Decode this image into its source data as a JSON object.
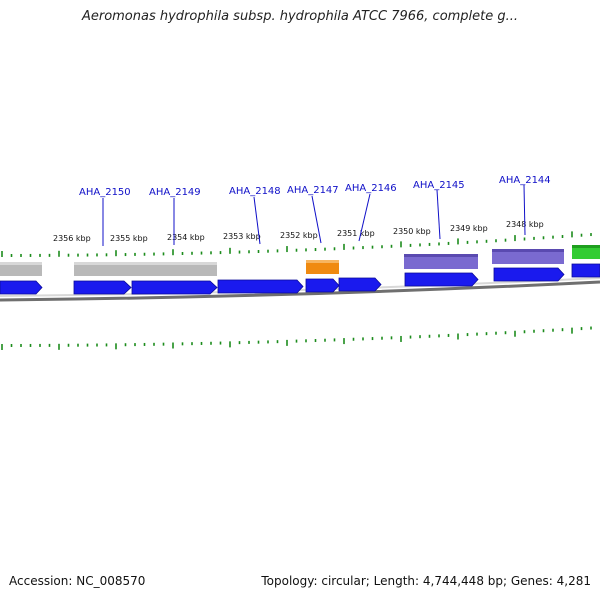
{
  "title": "Aeromonas hydrophila subsp. hydrophila ATCC 7966, complete g...",
  "accession": "Accession: NC_008570",
  "topology": "Topology: circular; Length: 4,744,448 bp; Genes: 4,281",
  "kbp_labels": [
    "2356 kbp",
    "2355 kbp",
    "2354 kbp",
    "2353 kbp",
    "2352 kbp",
    "2351 kbp",
    "2350 kbp",
    "2349 kbp",
    "2348 kbp"
  ],
  "gene_labels": [
    "AHA_2150",
    "AHA_2149",
    "AHA_2148",
    "AHA_2147",
    "AHA_2146",
    "AHA_2145",
    "AHA_2144"
  ],
  "colors": {
    "cds": "#1a1aee",
    "grey_feature": "#b8b8b8",
    "orange_feature": "#f08a10",
    "purple_feature": "#7a6ad0",
    "green_feature": "#33cc33",
    "tick": "#1c8c1c",
    "backbone": "#777777",
    "label": "#1010c8"
  }
}
